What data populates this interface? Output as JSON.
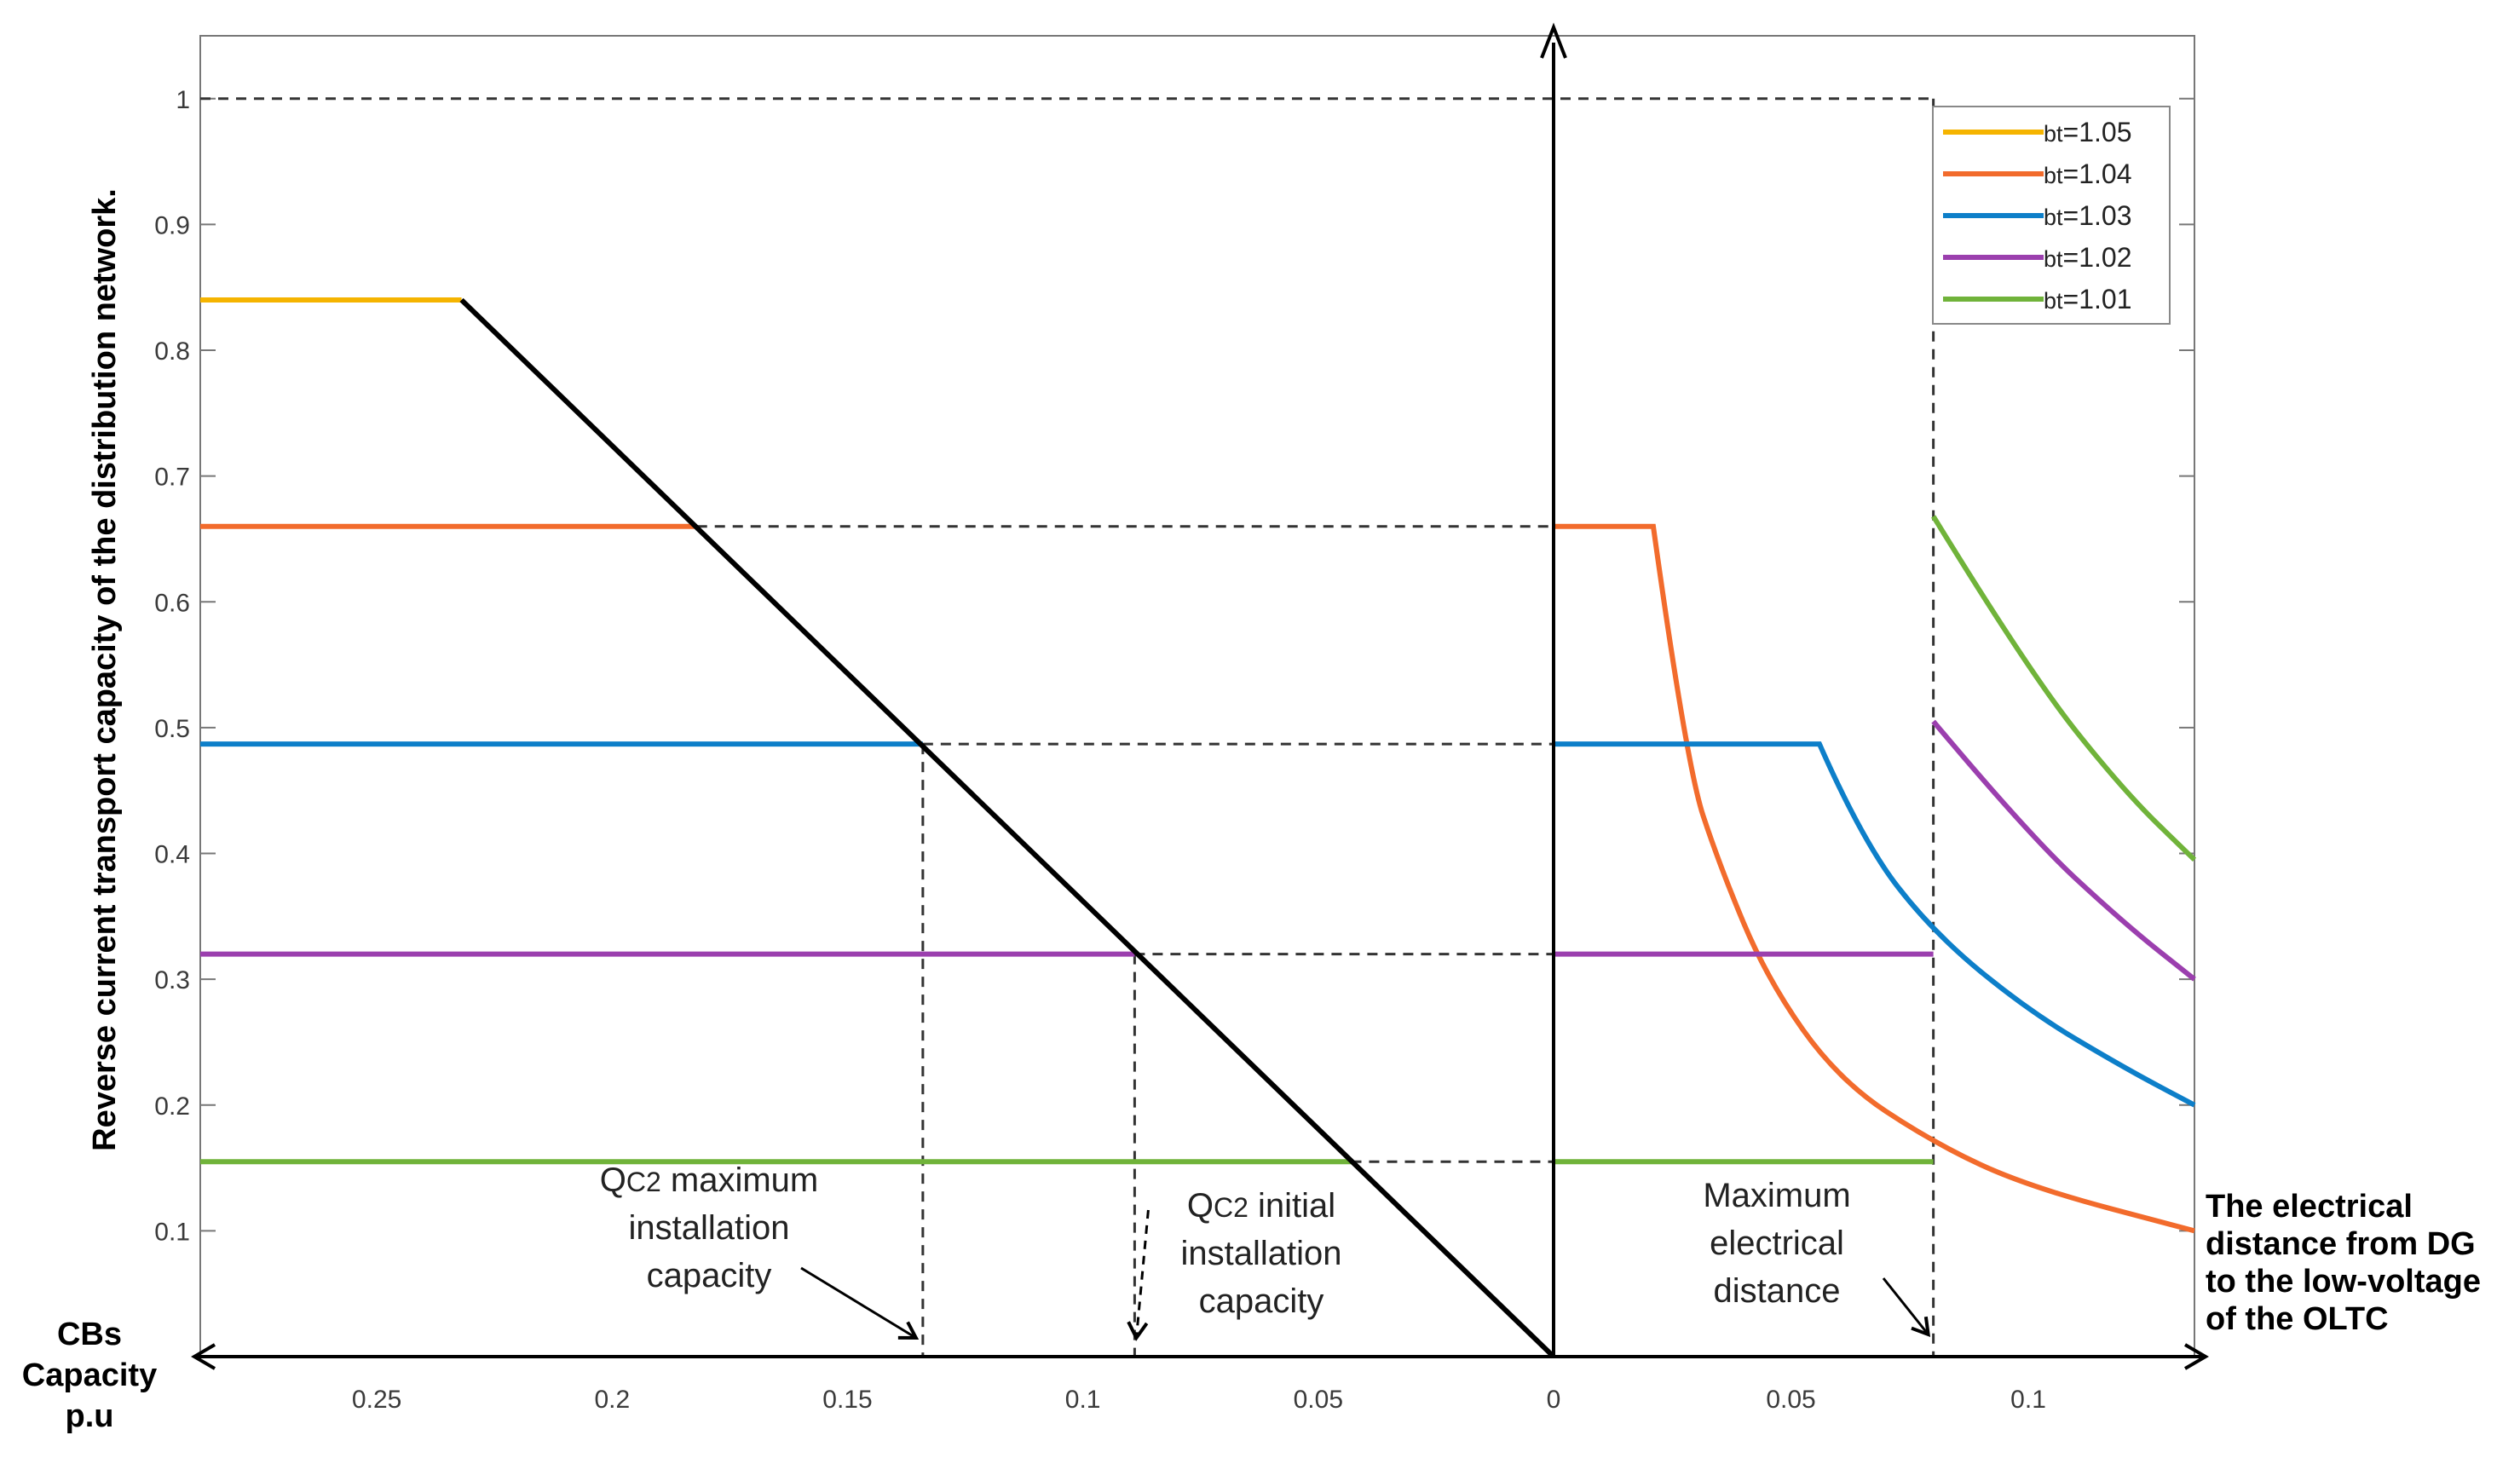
{
  "chart_data": {
    "type": "line",
    "ylabel": "Reverse  current  transport capacity of the distribution network.",
    "ylim": [
      0,
      1.05
    ],
    "yticks": [
      "0.1",
      "0.2",
      "0.3",
      "0.4",
      "0.5",
      "0.6",
      "0.7",
      "0.8",
      "0.9",
      "1"
    ],
    "left_panel": {
      "xlabel_lines": [
        "CBs",
        "Capacity",
        "p.u"
      ],
      "xlim": [
        0.2875,
        0
      ],
      "xticks": [
        "0.25",
        "0.2",
        "0.15",
        "0.1",
        "0.05",
        "0"
      ],
      "black_line": {
        "name": "capacity line",
        "points": [
          [
            0.232,
            0.84
          ],
          [
            0,
            0
          ]
        ]
      },
      "series": [
        {
          "name": "bt=1.05",
          "color": "#f5b400",
          "y": 0.84,
          "x_from": 0.2875,
          "x_to": 0.232
        },
        {
          "name": "bt=1.04",
          "color": "#f26b2c",
          "y": 0.66,
          "x_from": 0.2875,
          "x_to": 0.182
        },
        {
          "name": "bt=1.03",
          "color": "#0d7fc9",
          "y": 0.487,
          "x_from": 0.2875,
          "x_to": 0.134
        },
        {
          "name": "bt=1.02",
          "color": "#9b3fae",
          "y": 0.32,
          "x_from": 0.2875,
          "x_to": 0.089
        },
        {
          "name": "bt=1.01",
          "color": "#70b33a",
          "y": 0.155,
          "x_from": 0.2875,
          "x_to": 0.043
        }
      ]
    },
    "right_panel": {
      "xlabel_lines": [
        "The electrical",
        "distance from DG",
        "to the low-voltage",
        "of the OLTC"
      ],
      "xlim": [
        0,
        0.135
      ],
      "xticks": [
        "0.05",
        "0.1"
      ],
      "max_distance": 0.08,
      "series": [
        {
          "name": "bt=1.04",
          "color": "#f26b2c",
          "flat": 0.66,
          "break": 0.021,
          "end": 0.1,
          "points": [
            [
              0,
              0.66
            ],
            [
              0.021,
              0.66
            ],
            [
              0.028,
              0.47
            ],
            [
              0.035,
              0.39
            ],
            [
              0.045,
              0.3
            ],
            [
              0.06,
              0.22
            ],
            [
              0.08,
              0.17
            ],
            [
              0.1,
              0.135
            ],
            [
              0.135,
              0.1
            ]
          ]
        },
        {
          "name": "bt=1.03",
          "color": "#0d7fc9",
          "flat": 0.487,
          "break": 0.056,
          "end": 0.2,
          "points": [
            [
              0,
              0.487
            ],
            [
              0.056,
              0.487
            ],
            [
              0.065,
              0.41
            ],
            [
              0.08,
              0.337
            ],
            [
              0.1,
              0.275
            ],
            [
              0.12,
              0.23
            ],
            [
              0.135,
              0.2
            ]
          ]
        },
        {
          "name": "bt=1.02",
          "color": "#9b3fae",
          "flat": 0.32,
          "break": 0.08,
          "end": 0.3,
          "points": [
            [
              0,
              0.32
            ],
            [
              0.08,
              0.32
            ],
            [
              0.08,
              0.505
            ],
            [
              0.1,
              0.415
            ],
            [
              0.12,
              0.345
            ],
            [
              0.135,
              0.3
            ]
          ]
        },
        {
          "name": "bt=1.01",
          "color": "#70b33a",
          "flat": 0.155,
          "break": 0.08,
          "end": 0.395,
          "points": [
            [
              0,
              0.155
            ],
            [
              0.08,
              0.155
            ],
            [
              0.08,
              0.668
            ],
            [
              0.1,
              0.545
            ],
            [
              0.12,
              0.45
            ],
            [
              0.135,
              0.395
            ]
          ]
        }
      ]
    },
    "legend": [
      {
        "label": "bt=1.05",
        "color": "#f5b400"
      },
      {
        "label": "bt=1.04",
        "color": "#f26b2c"
      },
      {
        "label": "bt=1.03",
        "color": "#0d7fc9"
      },
      {
        "label": "bt=1.02",
        "color": "#9b3fae"
      },
      {
        "label": "bt=1.01",
        "color": "#70b33a"
      }
    ],
    "legend_position": "top-right",
    "annotations": {
      "qc2_max": [
        "QC2 maximum",
        "installation",
        "capacity"
      ],
      "qc2_max_x": 0.134,
      "qc2_initial": [
        "QC2 initial",
        "installation",
        "capacity"
      ],
      "qc2_initial_x": 0.089,
      "max_distance": [
        "Maximum",
        "electrical",
        "distance"
      ]
    }
  }
}
